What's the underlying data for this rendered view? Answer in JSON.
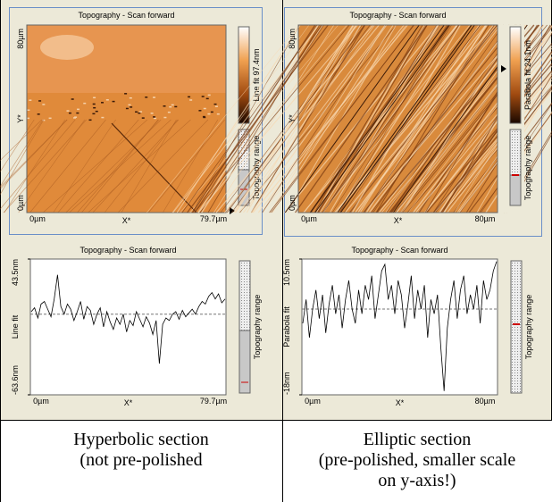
{
  "panels": [
    {
      "image": {
        "title": "Topography - Scan forward",
        "y_top": "80µm",
        "y_axis": "Y*",
        "y_bottom": "0µm",
        "x_left": "0µm",
        "x_axis": "X*",
        "x_right": "79.7µm",
        "colorbar_label": "Line fit 97.4nm",
        "range_label": "Topography range"
      },
      "profile": {
        "title": "Topography - Scan forward",
        "y_axis": "Line fit",
        "ylim": [
          -63.6,
          43.5
        ],
        "yticks": [
          {
            "value": 43.5,
            "label": "43.5nm"
          },
          {
            "value": -63.6,
            "label": "-63.6nm"
          }
        ],
        "x_left": "0µm",
        "x_axis": "X*",
        "x_right": "79.7µm",
        "range_label": "Topography range",
        "values": [
          2,
          5,
          -3,
          8,
          10,
          4,
          -2,
          12,
          31,
          6,
          0,
          8,
          4,
          -5,
          2,
          10,
          -4,
          6,
          3,
          -8,
          0,
          5,
          -10,
          2,
          -6,
          -12,
          -3,
          -8,
          0,
          -14,
          -5,
          -9,
          2,
          -4,
          -10,
          -2,
          -7,
          -16,
          -5,
          -39,
          -8,
          -3,
          -5,
          0,
          2,
          -4,
          3,
          -2,
          1,
          4,
          0,
          6,
          10,
          8,
          14,
          17,
          12,
          16,
          9,
          12
        ]
      },
      "caption": [
        "Hyperbolic section",
        "(not pre-polished"
      ]
    },
    {
      "image": {
        "title": "Topography - Scan forward",
        "y_top": "80µm",
        "y_axis": "Y*",
        "y_bottom": "0µm",
        "x_left": "0µm",
        "x_axis": "X*",
        "x_right": "80µm",
        "colorbar_label": "Parabola fit 24.1nm",
        "range_label": "Topography range"
      },
      "profile": {
        "title": "Topography - Scan forward",
        "y_axis": "Parabola fit",
        "ylim": [
          -18,
          10.5
        ],
        "yticks": [
          {
            "value": 10.5,
            "label": "10.5nm"
          },
          {
            "value": -18,
            "label": "-18nm"
          }
        ],
        "x_left": "0µm",
        "x_axis": "X*",
        "x_right": "80µm",
        "range_label": "Topography range",
        "values": [
          -3,
          2,
          -6,
          0,
          4,
          -2,
          3,
          -5,
          1,
          5,
          -1,
          3,
          -4,
          2,
          6,
          0,
          -3,
          4,
          -1,
          5,
          2,
          7,
          -2,
          3,
          8,
          9.4,
          2,
          5,
          -1,
          6,
          3,
          -4,
          1,
          7,
          -2,
          4,
          0,
          5,
          -6,
          2,
          -1,
          3,
          -8,
          -17.2,
          -4,
          2,
          6,
          -2,
          4,
          7,
          -1,
          3,
          0,
          5,
          -3,
          6,
          2,
          4,
          8,
          10
        ]
      },
      "caption": [
        "Elliptic section",
        "(pre-polished, smaller scale",
        "on y-axis!)"
      ]
    }
  ]
}
